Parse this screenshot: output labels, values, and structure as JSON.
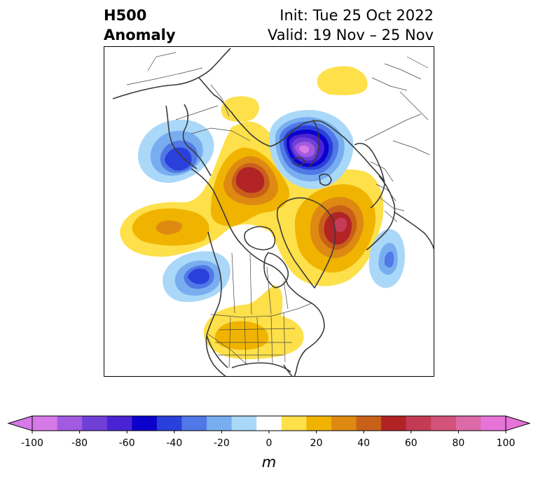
{
  "title": {
    "left_line1": "H500",
    "left_line2": "Anomaly",
    "init": "Init: Tue 25 Oct 2022",
    "valid": "Valid: 19 Nov – 25 Nov"
  },
  "colorbar": {
    "units": "m",
    "levels": [
      -100,
      -90,
      -80,
      -70,
      -60,
      -50,
      -40,
      -30,
      -20,
      -10,
      10,
      20,
      30,
      40,
      50,
      60,
      70,
      80,
      90,
      100
    ],
    "tick_labels": [
      "-100",
      "-80",
      "-60",
      "-40",
      "-20",
      "0",
      "20",
      "40",
      "60",
      "80",
      "100"
    ],
    "colors": [
      "#d67ae8",
      "#a25ae0",
      "#7040d6",
      "#4a24d4",
      "#0c00cc",
      "#2a40db",
      "#5078e6",
      "#78aef0",
      "#aad8f8",
      "#ffffff",
      "#fde04a",
      "#f0b400",
      "#de8a12",
      "#c9601a",
      "#b22326",
      "#c53b55",
      "#d2527a",
      "#dc6aa8",
      "#e674d8"
    ]
  },
  "map": {
    "projection": "north polar stereographic",
    "field": "500 hPa geopotential height anomaly",
    "features": [
      {
        "name": "negative anomaly over Siberian Arctic",
        "sign": "negative",
        "peak": -95
      },
      {
        "name": "positive anomaly over Alaska / Beaufort",
        "sign": "positive",
        "peak": 55
      },
      {
        "name": "positive anomaly over Greenland / Barents",
        "sign": "positive",
        "peak": 60
      },
      {
        "name": "positive anomaly over North Pacific",
        "sign": "positive",
        "peak": 35
      },
      {
        "name": "positive anomaly over southern United States",
        "sign": "positive",
        "peak": 22
      },
      {
        "name": "negative anomaly over East Asia / Japan",
        "sign": "negative",
        "peak": -45
      },
      {
        "name": "negative anomaly off western Canada",
        "sign": "negative",
        "peak": -50
      },
      {
        "name": "negative anomaly over eastern Atlantic",
        "sign": "negative",
        "peak": -35
      },
      {
        "name": "positive anomaly over Kamchatka",
        "sign": "positive",
        "peak": 15
      },
      {
        "name": "positive anomaly over central Siberia",
        "sign": "positive",
        "peak": 15
      }
    ]
  }
}
